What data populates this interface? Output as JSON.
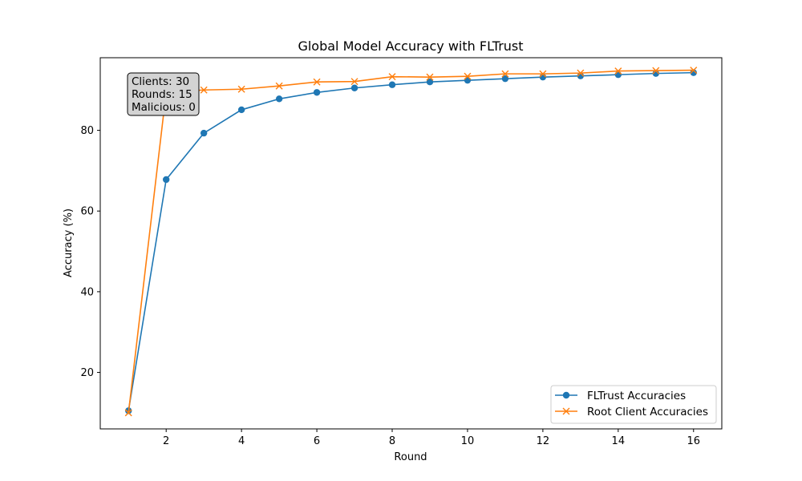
{
  "chart_data": {
    "type": "line",
    "title": "Global Model Accuracy with FLTrust",
    "xlabel": "Round",
    "ylabel": "Accuracy (%)",
    "xlim": [
      0.25,
      16.75
    ],
    "ylim": [
      6,
      98
    ],
    "xticks": [
      2,
      4,
      6,
      8,
      10,
      12,
      14,
      16
    ],
    "yticks": [
      20,
      40,
      60,
      80
    ],
    "grid": false,
    "legend_position": "lower-right",
    "x": [
      1,
      2,
      3,
      4,
      5,
      6,
      7,
      8,
      9,
      10,
      11,
      12,
      13,
      14,
      15,
      16
    ],
    "series": [
      {
        "name": "FLTrust Accuracies",
        "color": "#1f77b4",
        "marker": "circle",
        "values": [
          10.5,
          67.8,
          79.3,
          85.1,
          87.8,
          89.4,
          90.5,
          91.3,
          92.0,
          92.4,
          92.8,
          93.2,
          93.5,
          93.8,
          94.1,
          94.3
        ]
      },
      {
        "name": "Root Client Accuracies",
        "color": "#ff7f0e",
        "marker": "x",
        "values": [
          10.0,
          89.5,
          90.0,
          90.2,
          91.0,
          92.0,
          92.1,
          93.3,
          93.2,
          93.4,
          94.0,
          94.0,
          94.2,
          94.7,
          94.8,
          94.9
        ]
      }
    ],
    "annotation": {
      "lines": [
        "Clients: 30",
        "Rounds: 15",
        "Malicious: 0"
      ],
      "background": "#d3d3d3"
    }
  }
}
